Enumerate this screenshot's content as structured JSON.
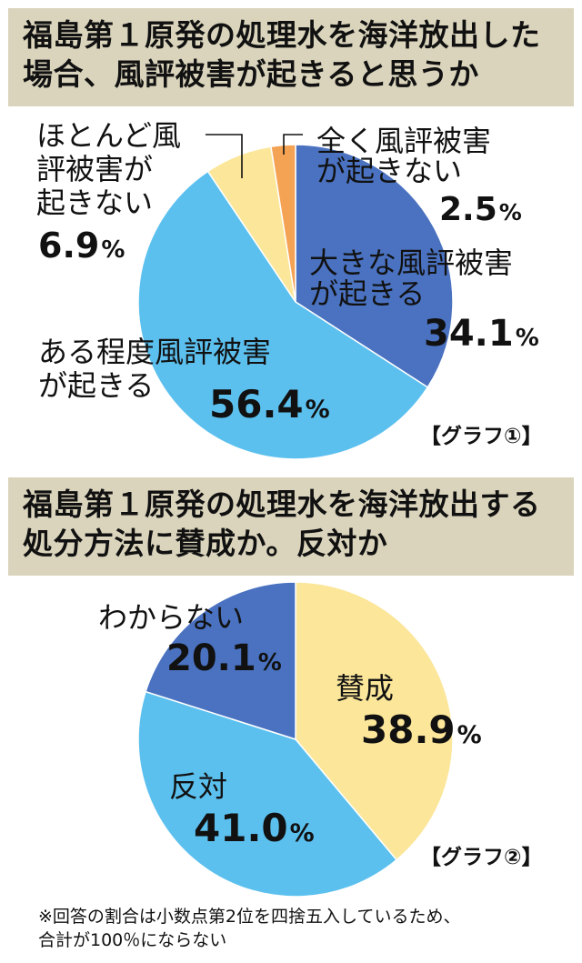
{
  "graph1": {
    "title_line1": "福島第１原発の処理水を海洋放出した",
    "title_line2": "場合、風評被害が起きると思うか",
    "caption": "【グラフ①】",
    "labels": {
      "a_line1": "大きな風評被害",
      "a_line2": "が起きる",
      "a_num": "34.1",
      "a_unit": "%",
      "b_line1": "ある程度風評被害",
      "b_line2": "が起きる",
      "b_num": "56.4",
      "b_unit": "%",
      "c_line1": "ほとんど風",
      "c_line2": "評被害が",
      "c_line3": "起きない",
      "c_num": "6.9",
      "c_unit": "%",
      "d_line1": "全く風評被害",
      "d_line2": "が起きない",
      "d_num": "2.5",
      "d_unit": "%"
    }
  },
  "graph2": {
    "title_line1": "福島第１原発の処理水を海洋放出する",
    "title_line2": "処分方法に賛成か。反対か",
    "caption": "【グラフ②】",
    "labels": {
      "a_line1": "賛成",
      "a_num": "38.9",
      "a_unit": "%",
      "b_line1": "反対",
      "b_num": "41.0",
      "b_unit": "%",
      "c_line1": "わからない",
      "c_num": "20.1",
      "c_unit": "%"
    }
  },
  "footnote": {
    "line1": "※回答の割合は小数点第2位を四捨五入しているため、",
    "line2": "合計が100％にならない"
  },
  "chart_data": [
    {
      "type": "pie",
      "categories": [
        "大きな風評被害が起きる",
        "ある程度風評被害が起きる",
        "ほとんど風評被害が起きない",
        "全く風評被害が起きない"
      ],
      "values": [
        34.1,
        56.4,
        6.9,
        2.5
      ],
      "colors": [
        "#4a72c0",
        "#5cc0ef",
        "#fbe69a",
        "#f4a355"
      ],
      "title": "福島第１原発の処理水を海洋放出した場合、風評被害が起きると思うか"
    },
    {
      "type": "pie",
      "categories": [
        "賛成",
        "反対",
        "わからない"
      ],
      "values": [
        38.9,
        41.0,
        20.1
      ],
      "colors": [
        "#fbe69a",
        "#5cc0ef",
        "#4a72c0"
      ],
      "title": "福島第１原発の処理水を海洋放出する処分方法に賛成か。反対か"
    }
  ]
}
